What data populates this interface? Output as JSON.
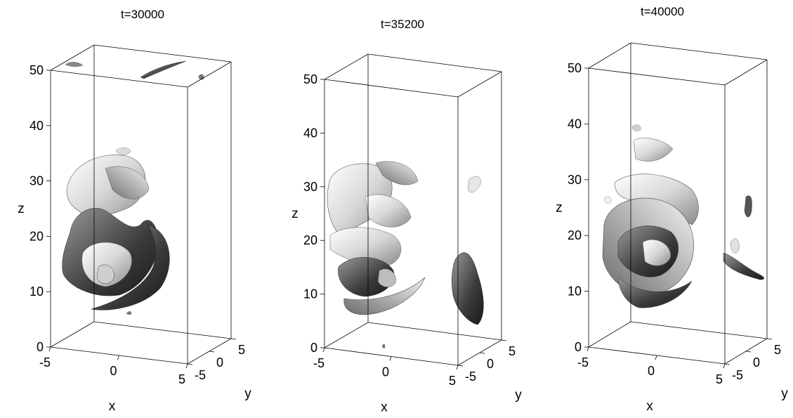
{
  "chart_data": [
    {
      "type": "3d-isosurface",
      "title": "t=30000",
      "xlabel": "x",
      "ylabel": "y",
      "zlabel": "z",
      "xlim": [
        -5,
        5
      ],
      "ylim": [
        -5,
        5
      ],
      "zlim": [
        0,
        50
      ],
      "x_ticks": [
        "-5",
        "0",
        "5"
      ],
      "y_ticks": [
        "-5",
        "0",
        "5"
      ],
      "z_ticks": [
        "0",
        "10",
        "20",
        "30",
        "40",
        "50"
      ],
      "structure_z_range": [
        7,
        34
      ]
    },
    {
      "type": "3d-isosurface",
      "title": "t=35200",
      "xlabel": "x",
      "ylabel": "y",
      "zlabel": "z",
      "xlim": [
        -5,
        5
      ],
      "ylim": [
        -5,
        5
      ],
      "zlim": [
        0,
        50
      ],
      "x_ticks": [
        "-5",
        "0",
        "5"
      ],
      "y_ticks": [
        "-5",
        "0",
        "5"
      ],
      "z_ticks": [
        "0",
        "10",
        "20",
        "30",
        "40",
        "50"
      ],
      "structure_z_range": [
        6,
        34
      ]
    },
    {
      "type": "3d-isosurface",
      "title": "t=40000",
      "xlabel": "x",
      "ylabel": "y",
      "zlabel": "z",
      "xlim": [
        -5,
        5
      ],
      "ylim": [
        -5,
        5
      ],
      "zlim": [
        0,
        50
      ],
      "x_ticks": [
        "-5",
        "0",
        "5"
      ],
      "y_ticks": [
        "-5",
        "0",
        "5"
      ],
      "z_ticks": [
        "0",
        "10",
        "20",
        "30",
        "40",
        "50"
      ],
      "structure_z_range": [
        8,
        40
      ]
    }
  ]
}
